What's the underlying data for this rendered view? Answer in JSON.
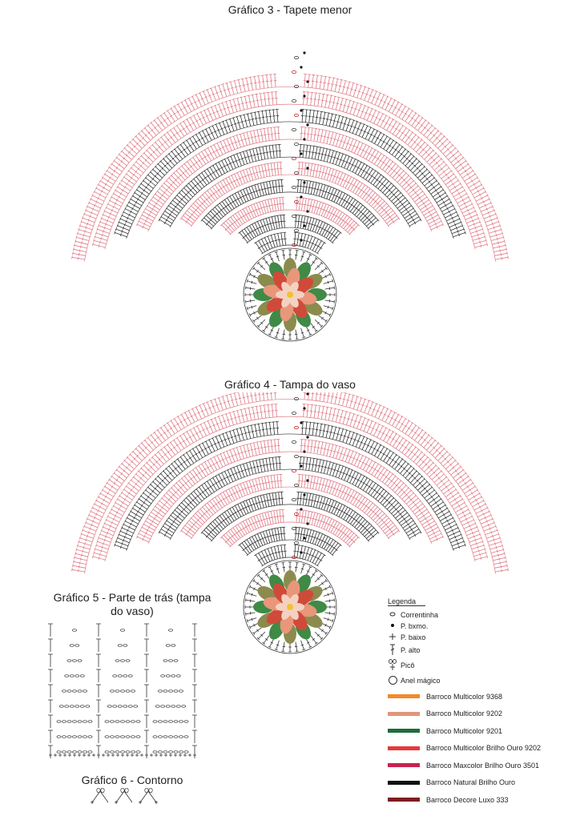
{
  "charts": {
    "g3": "Gráfico 3 - Tapete menor",
    "g4": "Gráfico 4 - Tampa do vaso",
    "g5": "Gráfico 5 - Parte de trás (tampa do vaso)",
    "g6": "Gráfico 6 - Contorno"
  },
  "legend": {
    "title": "Legenda",
    "symbols": [
      {
        "label": "Correntinha",
        "icon": "chain-stitch-icon"
      },
      {
        "label": "P. bxmo.",
        "icon": "slip-stitch-icon"
      },
      {
        "label": "P. baixo",
        "icon": "single-crochet-icon"
      },
      {
        "label": "P. alto",
        "icon": "double-crochet-icon"
      },
      {
        "label": "Picô",
        "icon": "picot-icon"
      },
      {
        "label": "Anel mágico",
        "icon": "magic-ring-icon"
      }
    ],
    "colors": [
      {
        "label": "Barroco Multicolor 9368",
        "color": "#f08a2a"
      },
      {
        "label": "Barroco Multicolor 9202",
        "color": "#e0957a"
      },
      {
        "label": "Barroco Multicolor 9201",
        "color": "#1e6b3c"
      },
      {
        "label": "Barroco Multicolor Brilho Ouro 9202",
        "color": "#e53a3a"
      },
      {
        "label": "Barroco Maxcolor Brilho Ouro 3501",
        "color": "#c8234f"
      },
      {
        "label": "Barroco Natural Brilho Ouro",
        "color": "#111111"
      },
      {
        "label": "Barroco Decore Luxo 333",
        "color": "#7d1c22"
      }
    ]
  },
  "palette": {
    "pink": "#e07a86",
    "black": "#333333",
    "red": "#c0202a",
    "leaf_green": "#3f8a46",
    "leaf_olive": "#8b8b4e",
    "petal_red": "#d04a3a",
    "petal_salmon": "#e9967a",
    "petal_pale": "#f4d2c2",
    "center_yellow": "#f2c230"
  }
}
